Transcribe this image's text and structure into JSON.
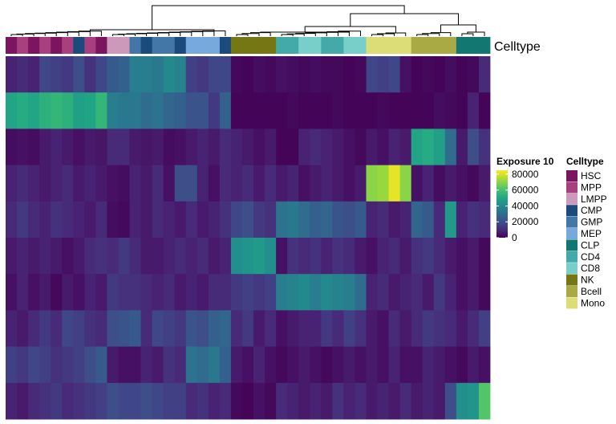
{
  "chart_data": {
    "type": "heatmap",
    "annotation_name": "Celltype",
    "color_legend": {
      "title": "Exposure 10",
      "ticks": [
        80000,
        60000,
        40000,
        20000,
        0
      ],
      "tick_labels": [
        "80000",
        "60000",
        "40000",
        "20000",
        "0"
      ],
      "min": 0,
      "max": 85000,
      "palette": [
        "#440154",
        "#482475",
        "#414487",
        "#355F8D",
        "#2A788E",
        "#21908D",
        "#22A884",
        "#43BF71",
        "#7AD151",
        "#BBDF27",
        "#FDE725"
      ]
    },
    "celltypes": [
      {
        "name": "HSC",
        "color": "#7B1560"
      },
      {
        "name": "MPP",
        "color": "#A8407F"
      },
      {
        "name": "LMPP",
        "color": "#CC99BB"
      },
      {
        "name": "CMP",
        "color": "#1B4B7C"
      },
      {
        "name": "GMP",
        "color": "#4277A8"
      },
      {
        "name": "MEP",
        "color": "#77A9DC"
      },
      {
        "name": "CLP",
        "color": "#137771"
      },
      {
        "name": "CD4",
        "color": "#44AAA9"
      },
      {
        "name": "CD8",
        "color": "#78CFCA"
      },
      {
        "name": "NK",
        "color": "#757714"
      },
      {
        "name": "Bcell",
        "color": "#AAAA44"
      },
      {
        "name": "Mono",
        "color": "#DDDD77"
      }
    ],
    "column_celltypes": [
      "HSC",
      "MPP",
      "HSC",
      "MPP",
      "HSC",
      "MPP",
      "CMP",
      "MPP",
      "HSC",
      "LMPP",
      "LMPP",
      "GMP",
      "CMP",
      "GMP",
      "GMP",
      "CMP",
      "MEP",
      "MEP",
      "MEP",
      "CMP",
      "NK",
      "NK",
      "NK",
      "NK",
      "CD4",
      "CD4",
      "CD8",
      "CD8",
      "CD4",
      "CD4",
      "CD8",
      "CD8",
      "Mono",
      "Mono",
      "Mono",
      "Mono",
      "Bcell",
      "Bcell",
      "Bcell",
      "Bcell",
      "CLP",
      "CLP",
      "CLP"
    ],
    "values": [
      [
        8000,
        10000,
        8000,
        18000,
        16000,
        14000,
        20000,
        12000,
        18000,
        24000,
        26000,
        36000,
        36000,
        34000,
        40000,
        38000,
        16000,
        14000,
        18000,
        18000,
        2000,
        1000,
        3000,
        2000,
        4000,
        3000,
        2000,
        3000,
        2000,
        2000,
        1000,
        2000,
        18000,
        16000,
        18000,
        4000,
        1000,
        2000,
        1000,
        3000,
        1000,
        2000,
        10000
      ],
      [
        50000,
        52000,
        50000,
        54000,
        56000,
        54000,
        48000,
        50000,
        56000,
        36000,
        34000,
        34000,
        30000,
        32000,
        28000,
        26000,
        22000,
        22000,
        14000,
        26000,
        1000,
        1000,
        1000,
        1000,
        1000,
        2000,
        1000,
        1000,
        1000,
        2000,
        1000,
        1000,
        1000,
        2000,
        1000,
        1000,
        1000,
        1000,
        3000,
        2000,
        1000,
        8000,
        1000
      ],
      [
        3000,
        4000,
        3000,
        6000,
        8000,
        6000,
        4000,
        6000,
        5000,
        10000,
        10000,
        6000,
        5000,
        6000,
        3000,
        4000,
        6000,
        8000,
        6000,
        10000,
        8000,
        6000,
        4000,
        6000,
        1000,
        1000,
        8000,
        10000,
        8000,
        6000,
        4000,
        2000,
        6000,
        4000,
        8000,
        6000,
        50000,
        52000,
        48000,
        30000,
        6000,
        20000,
        12000
      ],
      [
        8000,
        10000,
        8000,
        6000,
        8000,
        10000,
        6000,
        8000,
        6000,
        4000,
        3000,
        8000,
        6000,
        10000,
        4000,
        20000,
        20000,
        8000,
        4000,
        10000,
        8000,
        10000,
        6000,
        10000,
        6000,
        8000,
        4000,
        6000,
        8000,
        6000,
        4000,
        6000,
        70000,
        72000,
        82000,
        70000,
        4000,
        8000,
        3000,
        6000,
        4000,
        2000,
        6000
      ],
      [
        10000,
        14000,
        10000,
        8000,
        12000,
        10000,
        8000,
        6000,
        10000,
        3000,
        2000,
        8000,
        6000,
        10000,
        8000,
        6000,
        10000,
        6000,
        8000,
        12000,
        18000,
        20000,
        14000,
        12000,
        32000,
        34000,
        30000,
        26000,
        28000,
        22000,
        20000,
        24000,
        8000,
        10000,
        6000,
        8000,
        28000,
        24000,
        10000,
        46000,
        8000,
        12000,
        10000
      ],
      [
        6000,
        8000,
        6000,
        8000,
        6000,
        4000,
        6000,
        10000,
        12000,
        10000,
        14000,
        10000,
        6000,
        6000,
        8000,
        10000,
        8000,
        10000,
        6000,
        8000,
        42000,
        44000,
        46000,
        42000,
        4000,
        12000,
        10000,
        12000,
        8000,
        12000,
        10000,
        6000,
        4000,
        8000,
        10000,
        6000,
        12000,
        14000,
        10000,
        6000,
        4000,
        6000,
        2000
      ],
      [
        4000,
        8000,
        4000,
        6000,
        2000,
        6000,
        4000,
        8000,
        6000,
        14000,
        12000,
        12000,
        10000,
        8000,
        10000,
        6000,
        8000,
        6000,
        10000,
        10000,
        14000,
        16000,
        14000,
        16000,
        36000,
        38000,
        40000,
        36000,
        40000,
        38000,
        36000,
        30000,
        8000,
        10000,
        6000,
        8000,
        10000,
        6000,
        14000,
        8000,
        4000,
        6000,
        2000
      ],
      [
        8000,
        6000,
        10000,
        14000,
        10000,
        18000,
        16000,
        12000,
        10000,
        20000,
        22000,
        24000,
        10000,
        18000,
        16000,
        14000,
        22000,
        20000,
        26000,
        28000,
        10000,
        14000,
        6000,
        10000,
        4000,
        6000,
        8000,
        8000,
        14000,
        10000,
        16000,
        12000,
        6000,
        4000,
        10000,
        6000,
        10000,
        14000,
        12000,
        10000,
        6000,
        10000,
        16000
      ],
      [
        16000,
        14000,
        18000,
        16000,
        12000,
        14000,
        16000,
        20000,
        24000,
        6000,
        4000,
        4000,
        8000,
        6000,
        12000,
        10000,
        32000,
        30000,
        34000,
        26000,
        6000,
        4000,
        8000,
        4000,
        2000,
        4000,
        6000,
        4000,
        2000,
        4000,
        6000,
        4000,
        6000,
        4000,
        8000,
        4000,
        4000,
        8000,
        6000,
        4000,
        2000,
        6000,
        4000
      ],
      [
        8000,
        6000,
        10000,
        12000,
        14000,
        10000,
        12000,
        14000,
        16000,
        20000,
        18000,
        18000,
        20000,
        18000,
        16000,
        16000,
        10000,
        12000,
        8000,
        10000,
        2000,
        1000,
        4000,
        2000,
        10000,
        8000,
        6000,
        8000,
        6000,
        12000,
        8000,
        10000,
        6000,
        8000,
        6000,
        10000,
        6000,
        8000,
        6000,
        20000,
        42000,
        44000,
        62000
      ]
    ]
  }
}
